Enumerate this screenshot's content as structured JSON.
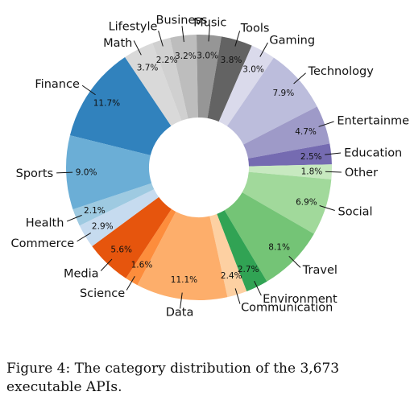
{
  "chart_data": {
    "type": "pie",
    "donut": true,
    "categories": [
      "Finance",
      "Math",
      "Lifestyle",
      "Business",
      "Music",
      "Tools",
      "Gaming",
      "Technology",
      "Entertainment",
      "Education",
      "Other",
      "Social",
      "Travel",
      "Environment",
      "Communication",
      "Data",
      "Science",
      "Media",
      "Commerce",
      "Health",
      "Sports"
    ],
    "values": [
      11.7,
      3.7,
      2.2,
      3.2,
      3.0,
      3.8,
      3.0,
      7.9,
      4.7,
      2.5,
      1.8,
      6.9,
      8.1,
      2.7,
      2.4,
      11.1,
      1.6,
      5.6,
      2.9,
      2.1,
      9.0
    ],
    "value_labels": [
      "11.7%",
      "3.7%",
      "2.2%",
      "3.2%",
      "3.0%",
      "3.8%",
      "3.0%",
      "7.9%",
      "4.7%",
      "2.5%",
      "1.8%",
      "6.9%",
      "8.1%",
      "2.7%",
      "2.4%",
      "11.1%",
      "1.6%",
      "5.6%",
      "2.9%",
      "2.1%",
      "9.0%"
    ],
    "colors": [
      "#3182bd",
      "#d9d9d9",
      "#d0d0d0",
      "#bdbdbd",
      "#969696",
      "#636363",
      "#dadaeb",
      "#bcbddc",
      "#9e9ac8",
      "#756bb1",
      "#c7e9c0",
      "#a1d99b",
      "#74c476",
      "#31a354",
      "#fdd0a2",
      "#fdae6b",
      "#fd8d3c",
      "#e6550d",
      "#c6dbef",
      "#9ecae1",
      "#6baed6"
    ]
  },
  "caption": "Figure 4: The category distribution of the 3,673 executable APIs."
}
